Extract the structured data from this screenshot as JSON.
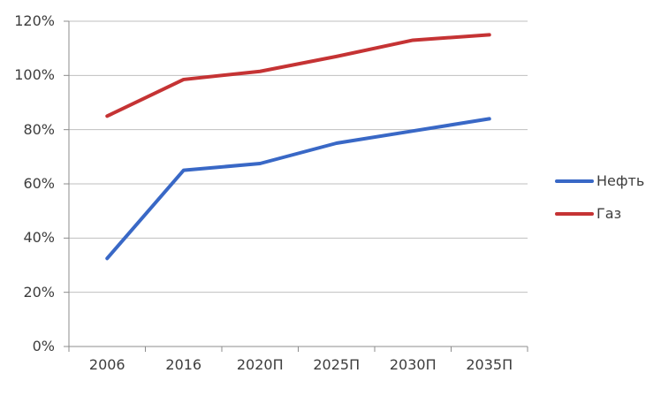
{
  "chart_data": {
    "type": "line",
    "categories": [
      "2006",
      "2016",
      "2020П",
      "2025П",
      "2030П",
      "2035П"
    ],
    "series": [
      {
        "name": "Нефть",
        "color": "#3968C6",
        "values": [
          32.5,
          65,
          67.5,
          75,
          79.5,
          84
        ]
      },
      {
        "name": "Газ",
        "color": "#C53334",
        "values": [
          85,
          98.5,
          101.5,
          107,
          113,
          115
        ]
      }
    ],
    "y_ticks": [
      "0%",
      "20%",
      "40%",
      "60%",
      "80%",
      "100%",
      "120%"
    ],
    "ylim": [
      0,
      120
    ],
    "y_step": 20,
    "grid": true,
    "legend_position": "right",
    "colors": {
      "grid": "#BFBFBF",
      "axis": "#8C8C8C",
      "text": "#3D3D3D"
    }
  }
}
